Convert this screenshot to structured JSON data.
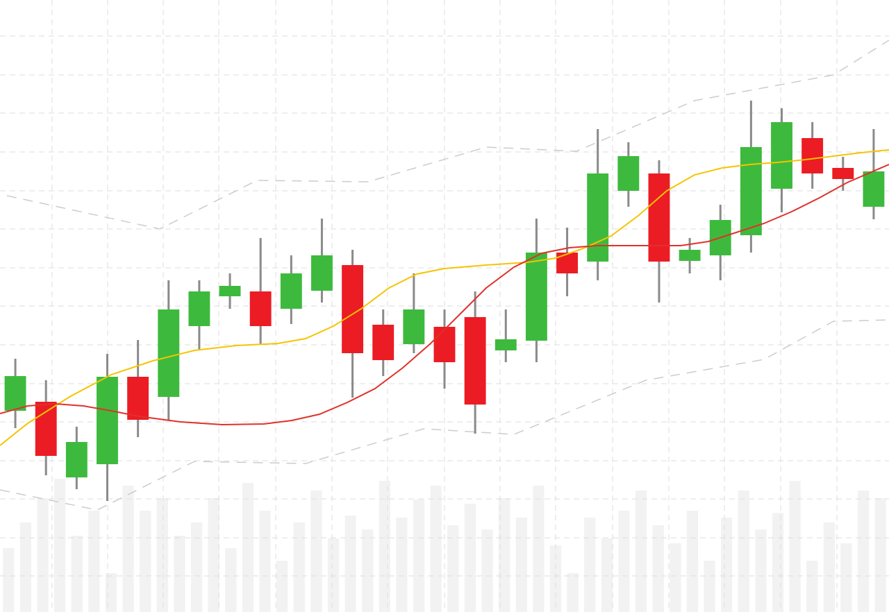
{
  "chart_data": {
    "type": "candlestick",
    "categories": [
      null,
      null,
      null,
      null,
      null,
      null,
      null,
      null,
      null,
      null,
      null,
      null,
      null,
      null,
      null,
      null,
      null,
      null,
      null,
      null,
      null,
      null,
      null,
      null,
      null,
      null,
      null,
      null,
      null
    ],
    "open": [
      290,
      303,
      194,
      213,
      339,
      310,
      412,
      455,
      462,
      437,
      463,
      500,
      414,
      386,
      411,
      425,
      377,
      391,
      518,
      505,
      607,
      632,
      506,
      514,
      543,
      610,
      683,
      640,
      584
    ],
    "high": [
      365,
      334,
      267,
      372,
      392,
      478,
      478,
      488,
      539,
      514,
      567,
      522,
      436,
      488,
      436,
      462,
      436,
      567,
      554,
      696,
      677,
      651,
      539,
      587,
      737,
      726,
      706,
      656,
      696
    ],
    "low": [
      265,
      197,
      177,
      160,
      252,
      277,
      377,
      437,
      385,
      415,
      446,
      309,
      340,
      373,
      322,
      257,
      360,
      360,
      455,
      478,
      584,
      446,
      488,
      478,
      518,
      576,
      610,
      607,
      566
    ],
    "close": [
      340,
      225,
      245,
      339,
      277,
      436,
      462,
      470,
      412,
      488,
      514,
      373,
      363,
      436,
      360,
      299,
      393,
      518,
      488,
      632,
      657,
      505,
      522,
      565,
      670,
      706,
      632,
      624,
      635
    ],
    "up_color": "#3dba3d",
    "down_color": "#ec1c24",
    "wick_color": "#8a8a8a",
    "xlim": [
      0,
      1280
    ],
    "ylim": [
      0,
      882
    ],
    "xticks": [
      75,
      155,
      235,
      315,
      397,
      478,
      558,
      640,
      720,
      800,
      882,
      963,
      1043,
      1124,
      1205
    ],
    "yticks": [
      830,
      774,
      719,
      663,
      607,
      552,
      496,
      441,
      385,
      329,
      274,
      218,
      163,
      107,
      52
    ],
    "grid": true,
    "grid_color": "#dddddd",
    "volume": {
      "color": "#f2f2f2",
      "values": [
        92,
        129,
        164,
        192,
        110,
        146,
        56,
        182,
        146,
        164,
        110,
        129,
        164,
        92,
        186,
        146,
        74,
        129,
        175,
        106,
        139,
        119,
        189,
        136,
        162,
        182,
        125,
        156,
        119,
        164,
        136,
        182,
        96,
        56,
        136,
        106,
        146,
        175,
        125,
        99,
        146,
        74,
        136,
        175,
        119,
        143,
        189,
        74,
        129,
        99,
        175,
        164
      ]
    },
    "series": [
      {
        "color": "#f5c400",
        "x": [
          0,
          40,
          100,
          160,
          220,
          280,
          340,
          400,
          440,
          480,
          520,
          560,
          600,
          640,
          700,
          760,
          800,
          840,
          880,
          920,
          960,
          1000,
          1040,
          1080,
          1120,
          1160,
          1200,
          1240,
          1280
        ],
        "values": [
          240,
          272,
          310,
          342,
          362,
          377,
          384,
          387,
          394,
          412,
          437,
          467,
          487,
          495,
          500,
          504,
          510,
          524,
          542,
          572,
          607,
          630,
          640,
          645,
          648,
          652,
          657,
          662,
          666
        ]
      },
      {
        "color": "#e0302a",
        "x": [
          0,
          40,
          80,
          120,
          160,
          200,
          260,
          320,
          380,
          420,
          460,
          500,
          540,
          580,
          620,
          660,
          700,
          740,
          780,
          820,
          860,
          900,
          940,
          980,
          1020,
          1060,
          1100,
          1140,
          1180,
          1220,
          1280
        ],
        "values": [
          286,
          297,
          300,
          297,
          290,
          282,
          274,
          270,
          271,
          276,
          285,
          302,
          322,
          352,
          387,
          427,
          467,
          497,
          517,
          525,
          528,
          528,
          528,
          528,
          534,
          547,
          560,
          577,
          597,
          619,
          645
        ]
      },
      {
        "color": "#cccccc",
        "dashed": true,
        "x": [
          10,
          230,
          370,
          530,
          700,
          830,
          1000,
          1200,
          1280
        ],
        "values": [
          600,
          552,
          622,
          620,
          670,
          664,
          737,
          774,
          824
        ]
      },
      {
        "color": "#cccccc",
        "dashed": true,
        "x": [
          0,
          140,
          280,
          440,
          610,
          740,
          930,
          1100,
          1200,
          1280
        ],
        "values": [
          176,
          147,
          217,
          214,
          264,
          256,
          334,
          364,
          419,
          421
        ]
      }
    ]
  }
}
